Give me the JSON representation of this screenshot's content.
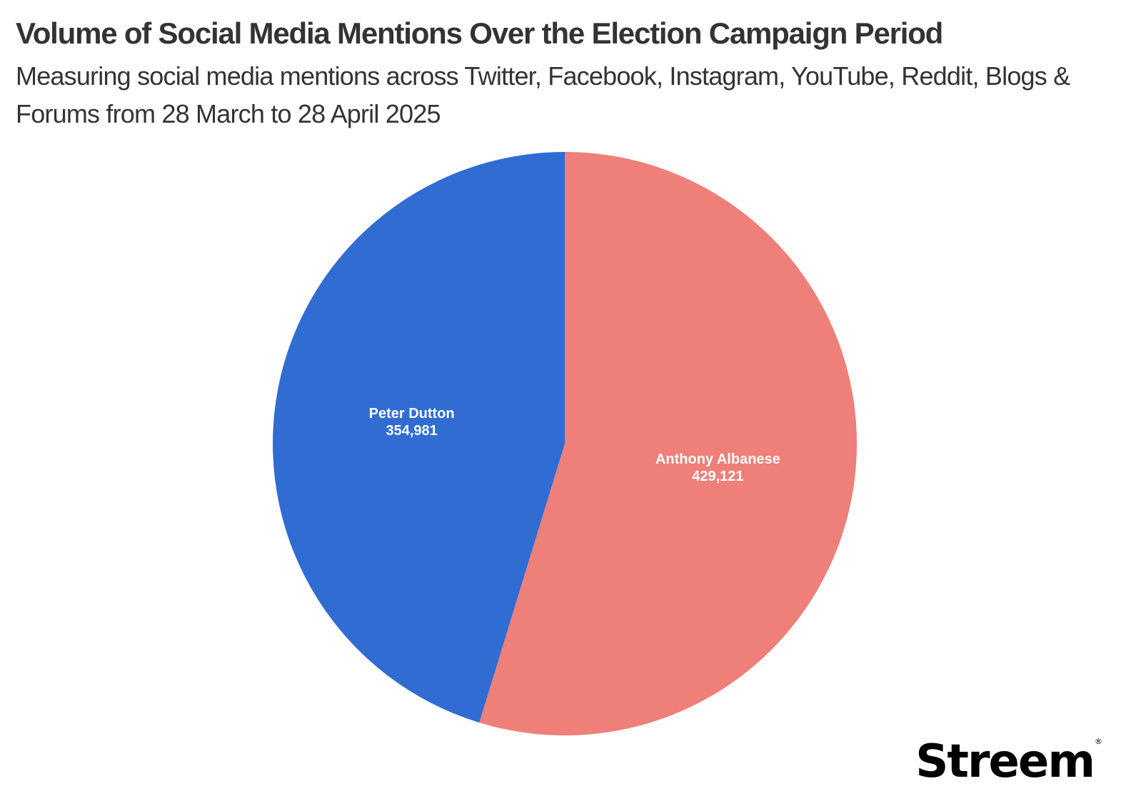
{
  "chart_data": {
    "type": "pie",
    "title": "Volume of Social Media Mentions Over the Election Campaign Period",
    "subtitle": "Measuring social media mentions across Twitter, Facebook, Instagram, YouTube, Reddit, Blogs & Forums from 28 March to 28 April 2025",
    "start_angle": "12 o'clock",
    "direction": "clockwise",
    "slices": [
      {
        "label": "Anthony Albanese",
        "value": 429121,
        "value_label": "429,121",
        "color": "#ef7f79"
      },
      {
        "label": "Peter Dutton",
        "value": 354981,
        "value_label": "354,981",
        "color": "#306cd2"
      }
    ]
  },
  "brand": {
    "logo_text": "Streem",
    "registered_mark": "®"
  }
}
